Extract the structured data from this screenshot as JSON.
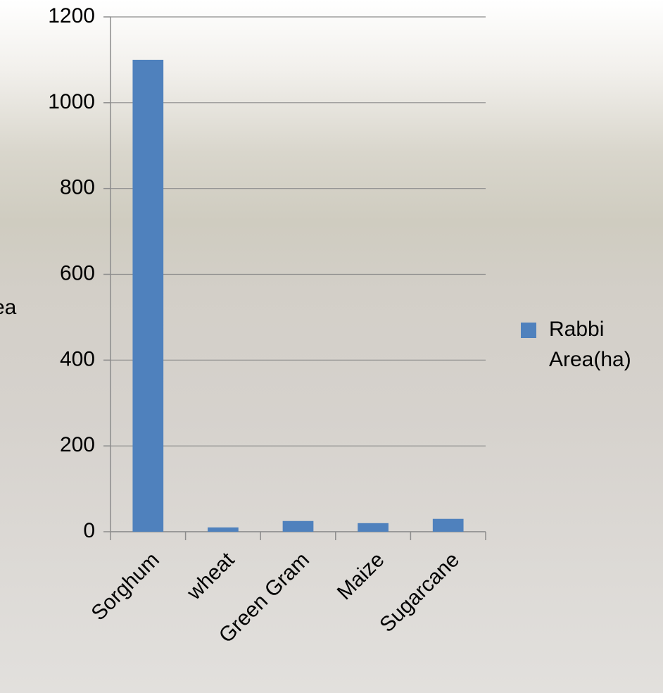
{
  "chart_data": {
    "type": "bar",
    "y_label": "ea",
    "categories": [
      "Sorghum",
      "wheat",
      "Green Gram",
      "Maize",
      "Sugarcane"
    ],
    "series": [
      {
        "name": "Rabbi Area(ha)",
        "color": "#4f81bd",
        "values": [
          1100,
          10,
          25,
          20,
          30
        ]
      }
    ],
    "ylim": [
      0,
      1200
    ],
    "yticks": [
      0,
      200,
      400,
      600,
      800,
      1000,
      1200
    ],
    "grid": true,
    "legend": "right"
  }
}
